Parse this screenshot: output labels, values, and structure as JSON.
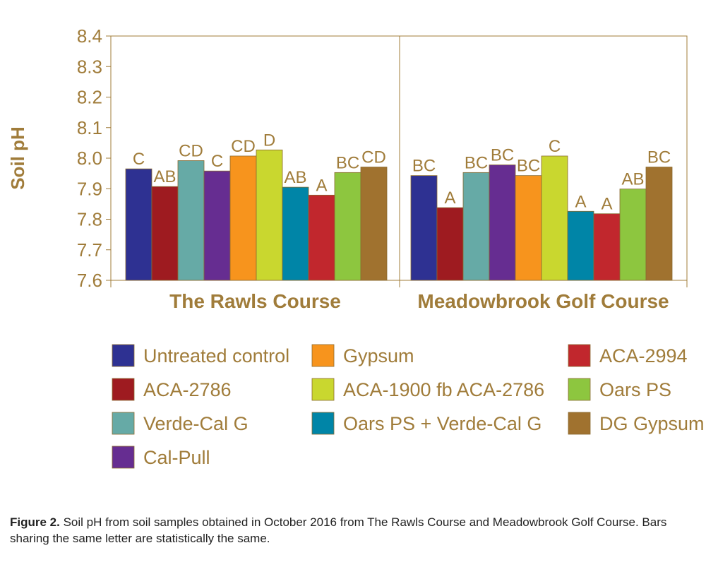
{
  "chart_data": {
    "type": "bar",
    "title": "",
    "ylabel": "Soil pH",
    "xlabel": "",
    "ylim": [
      7.6,
      8.4
    ],
    "yticks": [
      "7.6",
      "7.7",
      "7.8",
      "7.9",
      "8.0",
      "8.1",
      "8.2",
      "8.3",
      "8.4"
    ],
    "categories": [
      "The Rawls Course",
      "Meadowbrook Golf Course"
    ],
    "grid": false,
    "legend_position": "bottom",
    "series": [
      {
        "name": "Untreated control",
        "color": "#2e3192",
        "values": [
          7.965,
          7.943
        ],
        "letters": [
          "C",
          "BC"
        ]
      },
      {
        "name": "ACA-2786",
        "color": "#9e1b20",
        "values": [
          7.907,
          7.838
        ],
        "letters": [
          "AB",
          "A"
        ]
      },
      {
        "name": "Verde-Cal G",
        "color": "#66aaa6",
        "values": [
          7.992,
          7.953
        ],
        "letters": [
          "CD",
          "BC"
        ]
      },
      {
        "name": "Cal-Pull",
        "color": "#662d91",
        "values": [
          7.958,
          7.978
        ],
        "letters": [
          "C",
          "BC"
        ]
      },
      {
        "name": "Gypsum",
        "color": "#f7941d",
        "values": [
          8.007,
          7.943
        ],
        "letters": [
          "CD",
          "BC"
        ]
      },
      {
        "name": "ACA-1900 fb ACA-2786",
        "color": "#c9d72f",
        "values": [
          8.027,
          8.007
        ],
        "letters": [
          "D",
          "C"
        ]
      },
      {
        "name": "Oars PS + Verde-Cal G",
        "color": "#0085a7",
        "values": [
          7.905,
          7.826
        ],
        "letters": [
          "AB",
          "A"
        ]
      },
      {
        "name": "ACA-2994",
        "color": "#c1272d",
        "values": [
          7.879,
          7.818
        ],
        "letters": [
          "A",
          "A"
        ]
      },
      {
        "name": "Oars PS",
        "color": "#8dc63f",
        "values": [
          7.953,
          7.899
        ],
        "letters": [
          "BC",
          "AB"
        ]
      },
      {
        "name": "DG Gypsum",
        "color": "#a0722f",
        "values": [
          7.971,
          7.971
        ],
        "letters": [
          "CD",
          "BC"
        ]
      }
    ],
    "legend_order": [
      0,
      4,
      7,
      1,
      5,
      8,
      2,
      6,
      9,
      3
    ]
  },
  "caption": {
    "bold": "Figure 2.",
    "text": " Soil pH from soil samples obtained in October 2016 from The Rawls Course and Meadowbrook Golf Course. Bars sharing the same letter are statistically the same."
  }
}
